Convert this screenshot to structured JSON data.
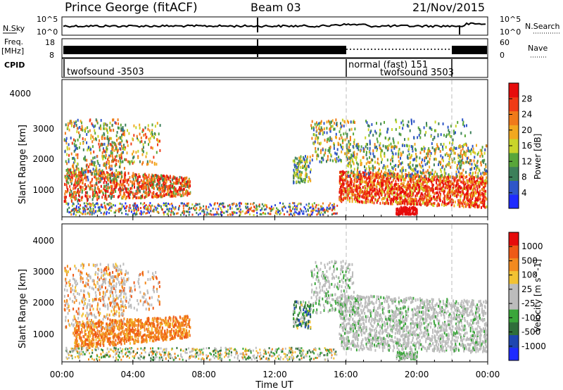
{
  "header": {
    "station": "Prince George (fitACF)",
    "beam": "Beam 03",
    "date": "21/Nov/2015"
  },
  "noise_panel": {
    "left_label": "N.Sky",
    "left_ticks": [
      "10^5",
      "10^0"
    ],
    "right_ticks": [
      "10^5",
      "10^0"
    ],
    "right_label": "N.Search"
  },
  "freq_panel": {
    "left_label_1": "Freq.",
    "left_label_2": "[MHz]",
    "left_ticks": [
      "18",
      "8"
    ],
    "right_ticks": [
      "60",
      "0"
    ],
    "right_label": "Nave"
  },
  "cpid_panel": {
    "label": "CPID",
    "segments": [
      "twofsound -3503",
      "normal (fast) 151",
      "twofsound 3503"
    ]
  },
  "colors": {
    "power_scale": [
      "#1e2bff",
      "#2f56c8",
      "#3c7f5a",
      "#58a63a",
      "#c9d52a",
      "#f2a81f",
      "#f07a1a",
      "#ef3b16",
      "#e60c0c"
    ],
    "velocity_scale": [
      "#e60c0c",
      "#ef5a16",
      "#f28a1f",
      "#f2c233",
      "#bcbcbc",
      "#bcbcbc",
      "#3aa63a",
      "#2f6e3a",
      "#1e46b0",
      "#1e2bff"
    ],
    "noise_line": "#000000",
    "mode_change_line": "#bbbbbb"
  },
  "chart_data": [
    {
      "type": "heatmap",
      "name": "Power",
      "ylabel": "Slant Range [km]",
      "yticks": [
        1000,
        2000,
        3000,
        4000
      ],
      "ylim": [
        180,
        4650
      ],
      "colorbar_label": "Power [dB]",
      "colorbar_ticks": [
        "4",
        "8",
        "12",
        "16",
        "20",
        "24",
        "28"
      ]
    },
    {
      "type": "heatmap",
      "name": "Velocity",
      "ylabel": "Slant Range [km]",
      "yticks": [
        1000,
        2000,
        3000,
        4000
      ],
      "ylim": [
        180,
        4650
      ],
      "colorbar_label": "Velocity [m s^-1]",
      "colorbar_ticks": [
        "1000",
        "500",
        "100",
        "25",
        "-25",
        "-100",
        "-500",
        "-1000"
      ]
    }
  ],
  "xaxis": {
    "label": "Time UT",
    "ticks": [
      "00:00",
      "04:00",
      "08:00",
      "12:00",
      "16:00",
      "20:00",
      "00:00"
    ]
  }
}
